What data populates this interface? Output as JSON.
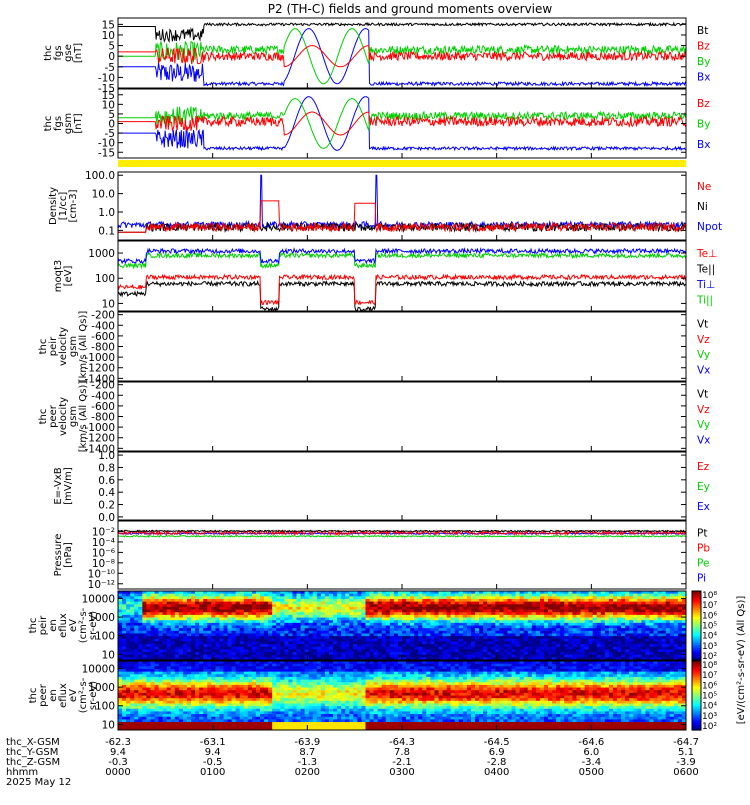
{
  "title": "P2 (TH-C) fields and ground moments overview",
  "colors": {
    "black": "#000000",
    "red": "#ff0000",
    "green": "#00d000",
    "blue": "#0000ff",
    "yellow": "#ffee00"
  },
  "chart_data": [
    {
      "type": "line",
      "ylabel": [
        "thc",
        "fgs",
        "gse",
        "[nT]"
      ],
      "ylim": [
        -15,
        18
      ],
      "yticks": [
        "15",
        "10",
        "5",
        "0",
        "-5",
        "-10",
        "-15"
      ],
      "legend": [
        {
          "name": "Bt",
          "color": "black"
        },
        {
          "name": "Bz",
          "color": "red"
        },
        {
          "name": "By",
          "color": "green"
        },
        {
          "name": "Bx",
          "color": "blue"
        }
      ]
    },
    {
      "type": "line",
      "ylabel": [
        "thc",
        "fgs",
        "gsm",
        "[nT]"
      ],
      "ylim": [
        -18,
        18
      ],
      "yticks": [
        "15",
        "10",
        "5",
        "0",
        "-5",
        "-10",
        "-15"
      ],
      "legend": [
        {
          "name": "Bz",
          "color": "red"
        },
        {
          "name": "By",
          "color": "green"
        },
        {
          "name": "Bx",
          "color": "blue"
        }
      ]
    },
    {
      "type": "line",
      "ylabel": [
        "Density",
        "[1/cc]",
        "[cm-3]"
      ],
      "yscale": "log",
      "ylim": [
        0.03,
        150
      ],
      "yticks": [
        "100.0",
        "10.0",
        "1.0",
        "0.1"
      ],
      "legend": [
        {
          "name": "Ne",
          "color": "red"
        },
        {
          "name": "Ni",
          "color": "black"
        },
        {
          "name": "Npot",
          "color": "blue"
        }
      ]
    },
    {
      "type": "line",
      "ylabel": [
        "moqt3",
        "[eV]"
      ],
      "yscale": "log",
      "ylim": [
        5,
        3000
      ],
      "yticks": [
        "1000",
        "100",
        "10"
      ],
      "legend": [
        {
          "name": "Te⊥",
          "color": "red"
        },
        {
          "name": "Te||",
          "color": "black"
        },
        {
          "name": "Ti⊥",
          "color": "blue"
        },
        {
          "name": "Ti||",
          "color": "green"
        }
      ]
    },
    {
      "type": "line",
      "ylabel": [
        "thc",
        "peir",
        "velocity",
        "gsm",
        "[km/s (All Qs)]"
      ],
      "ylim": [
        -1450,
        -150
      ],
      "yticks": [
        "-200",
        "-400",
        "-600",
        "-800",
        "-1000",
        "-1200",
        "-1400"
      ],
      "legend": [
        {
          "name": "Vt",
          "color": "black"
        },
        {
          "name": "Vz",
          "color": "red"
        },
        {
          "name": "Vy",
          "color": "green"
        },
        {
          "name": "Vx",
          "color": "blue"
        }
      ]
    },
    {
      "type": "line",
      "ylabel": [
        "thc",
        "peer",
        "velocity",
        "gsm",
        "[km/s (All Qs)]"
      ],
      "ylim": [
        -1450,
        -150
      ],
      "yticks": [
        "-200",
        "-400",
        "-600",
        "-800",
        "-1000",
        "-1200",
        "-1400"
      ],
      "legend": [
        {
          "name": "Vt",
          "color": "black"
        },
        {
          "name": "Vz",
          "color": "red"
        },
        {
          "name": "Vy",
          "color": "green"
        },
        {
          "name": "Vx",
          "color": "blue"
        }
      ]
    },
    {
      "type": "line",
      "ylabel": [
        "E=-VxB",
        "[mV/m]"
      ],
      "ylim": [
        -0.05,
        1.05
      ],
      "yticks": [
        "1.0",
        "0.8",
        "0.6",
        "0.4",
        "0.2",
        "0.0"
      ],
      "legend": [
        {
          "name": "Ez",
          "color": "red"
        },
        {
          "name": "Ey",
          "color": "green"
        },
        {
          "name": "Ex",
          "color": "blue"
        }
      ]
    },
    {
      "type": "line",
      "ylabel": [
        "Pressure",
        "[nPa]"
      ],
      "yscale": "log",
      "ylim": [
        1e-13,
        1
      ],
      "yticks": [
        "10⁻²",
        "10⁻⁴",
        "10⁻⁶",
        "10⁻⁸",
        "10⁻¹⁰",
        "10⁻¹²"
      ],
      "legend": [
        {
          "name": "Pt",
          "color": "black"
        },
        {
          "name": "Pb",
          "color": "red"
        },
        {
          "name": "Pe",
          "color": "green"
        },
        {
          "name": "Pi",
          "color": "blue"
        }
      ]
    },
    {
      "type": "heatmap",
      "ylabel": [
        "thc",
        "peir",
        "en",
        "eflux",
        "eV",
        "(cm²-s-",
        "sr-eV)"
      ],
      "yscale": "log",
      "ylim": [
        5,
        25000
      ],
      "yticks": [
        "10000",
        "1000",
        "100",
        "10"
      ]
    },
    {
      "type": "heatmap",
      "ylabel": [
        "thc",
        "peer",
        "en",
        "eflux",
        "eV",
        "(cm²-s-",
        "sr-eV)"
      ],
      "yscale": "log",
      "ylim": [
        5,
        25000
      ],
      "yticks": [
        "10000",
        "1000",
        "100",
        "10"
      ]
    }
  ],
  "colorbar": {
    "label": "[eV/(cm²-s-sr-eV) (All Qs)]",
    "upper_ticks": [
      "10⁸",
      "10⁷",
      "10⁶",
      "10⁵",
      "10⁴",
      "10³",
      "10²"
    ],
    "lower_ticks": [
      "10⁸",
      "10⁷",
      "10⁶",
      "10⁵",
      "10⁴",
      "10³",
      "10²"
    ]
  },
  "xaxis": {
    "labels": [
      "thc_X-GSM",
      "thc_Y-GSM",
      "thc_Z-GSM",
      "hhmm",
      "2025 May 12"
    ],
    "ticks": [
      {
        "hour": 0,
        "values": [
          "-62.3",
          "9.4",
          "-0.3",
          "0000"
        ]
      },
      {
        "hour": 1,
        "values": [
          "-63.1",
          "9.4",
          "-0.5",
          "0100"
        ]
      },
      {
        "hour": 2,
        "values": [
          "-63.9",
          "8.7",
          "-1.3",
          "0200"
        ]
      },
      {
        "hour": 3,
        "values": [
          "-64.3",
          "7.8",
          "-2.1",
          "0300"
        ]
      },
      {
        "hour": 4,
        "values": [
          "-64.5",
          "6.9",
          "-2.8",
          "0400"
        ]
      },
      {
        "hour": 5,
        "values": [
          "-64.6",
          "6.0",
          "-3.4",
          "0500"
        ]
      },
      {
        "hour": 6,
        "values": [
          "-64.7",
          "5.1",
          "-3.9",
          "0600"
        ]
      }
    ]
  }
}
